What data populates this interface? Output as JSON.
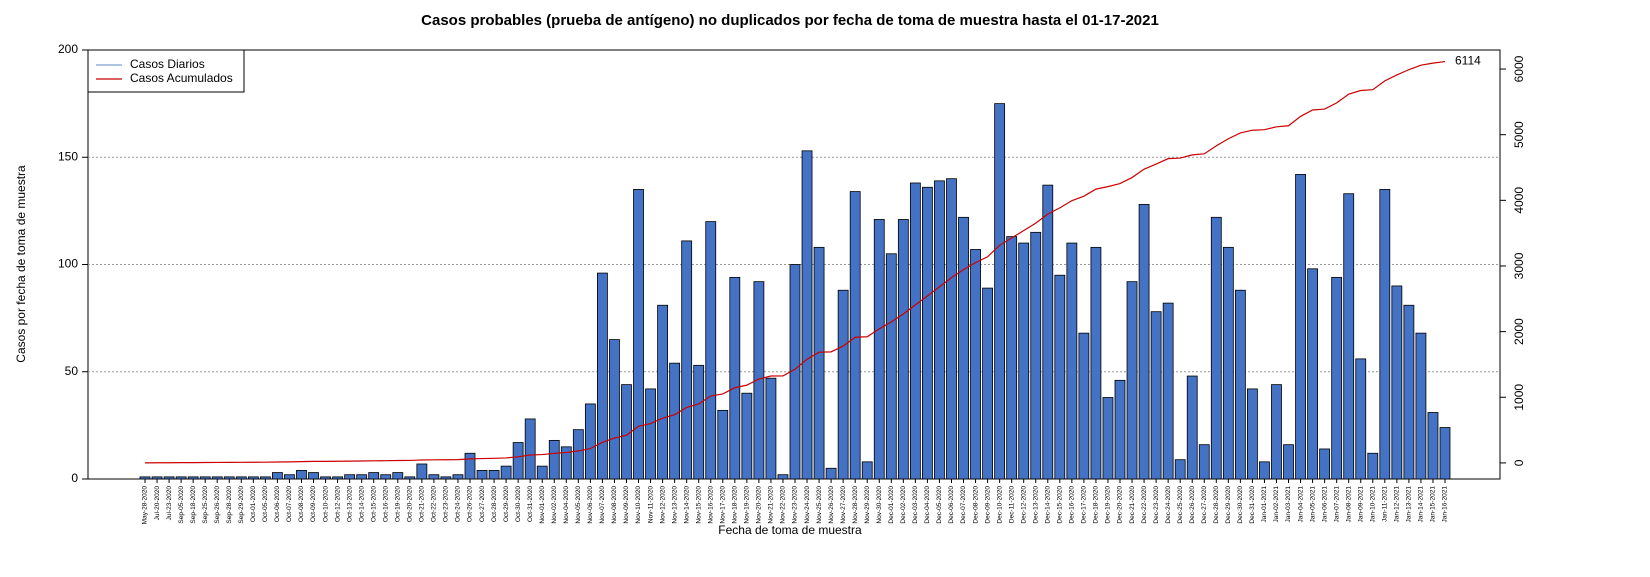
{
  "chart_data": {
    "type": "bar",
    "title": "Casos probables (prueba de antígeno) no duplicados por fecha de toma de muestra hasta el 01-17-2021",
    "xlabel": "Fecha de toma de muestra",
    "ylabel": "Casos por fecha de toma de muestra",
    "categories": [
      "May-28-2020",
      "Jul-20-2020",
      "Jul-23-2020",
      "Sep-05-2020",
      "Sep-18-2020",
      "Sep-25-2020",
      "Sep-26-2020",
      "Sep-28-2020",
      "Sep-29-2020",
      "Oct-01-2020",
      "Oct-05-2020",
      "Oct-06-2020",
      "Oct-07-2020",
      "Oct-08-2020",
      "Oct-09-2020",
      "Oct-10-2020",
      "Oct-12-2020",
      "Oct-13-2020",
      "Oct-14-2020",
      "Oct-15-2020",
      "Oct-16-2020",
      "Oct-19-2020",
      "Oct-20-2020",
      "Oct-21-2020",
      "Oct-22-2020",
      "Oct-23-2020",
      "Oct-24-2020",
      "Oct-26-2020",
      "Oct-27-2020",
      "Oct-28-2020",
      "Oct-29-2020",
      "Oct-30-2020",
      "Oct-31-2020",
      "Nov-01-2020",
      "Nov-02-2020",
      "Nov-04-2020",
      "Nov-05-2020",
      "Nov-06-2020",
      "Nov-07-2020",
      "Nov-08-2020",
      "Nov-09-2020",
      "Nov-10-2020",
      "Nov-11-2020",
      "Nov-12-2020",
      "Nov-13-2020",
      "Nov-14-2020",
      "Nov-15-2020",
      "Nov-16-2020",
      "Nov-17-2020",
      "Nov-18-2020",
      "Nov-19-2020",
      "Nov-20-2020",
      "Nov-21-2020",
      "Nov-22-2020",
      "Nov-23-2020",
      "Nov-24-2020",
      "Nov-25-2020",
      "Nov-26-2020",
      "Nov-27-2020",
      "Nov-28-2020",
      "Nov-29-2020",
      "Nov-30-2020",
      "Dec-01-2020",
      "Dec-02-2020",
      "Dec-03-2020",
      "Dec-04-2020",
      "Dec-05-2020",
      "Dec-06-2020",
      "Dec-07-2020",
      "Dec-08-2020",
      "Dec-09-2020",
      "Dec-10-2020",
      "Dec-11-2020",
      "Dec-12-2020",
      "Dec-13-2020",
      "Dec-14-2020",
      "Dec-15-2020",
      "Dec-16-2020",
      "Dec-17-2020",
      "Dec-18-2020",
      "Dec-19-2020",
      "Dec-20-2020",
      "Dec-21-2020",
      "Dec-22-2020",
      "Dec-23-2020",
      "Dec-24-2020",
      "Dec-25-2020",
      "Dec-26-2020",
      "Dec-27-2020",
      "Dec-28-2020",
      "Dec-29-2020",
      "Dec-30-2020",
      "Dec-31-2020",
      "Jan-01-2021",
      "Jan-02-2021",
      "Jan-03-2021",
      "Jan-04-2021",
      "Jan-05-2021",
      "Jan-06-2021",
      "Jan-07-2021",
      "Jan-08-2021",
      "Jan-09-2021",
      "Jan-10-2021",
      "Jan-11-2021",
      "Jan-12-2021",
      "Jan-13-2021",
      "Jan-14-2021",
      "Jan-15-2021",
      "Jan-16-2021"
    ],
    "series": [
      {
        "name": "Casos Diarios",
        "color": "#4472c4",
        "legend_color": "#7f9fd0",
        "values": [
          1,
          1,
          1,
          1,
          1,
          1,
          1,
          1,
          1,
          1,
          1,
          3,
          2,
          4,
          3,
          1,
          1,
          2,
          2,
          3,
          2,
          3,
          1,
          7,
          2,
          1,
          2,
          12,
          4,
          4,
          6,
          17,
          28,
          6,
          18,
          15,
          23,
          35,
          96,
          65,
          44,
          135,
          42,
          81,
          54,
          111,
          53,
          120,
          32,
          94,
          40,
          92,
          47,
          2,
          100,
          153,
          108,
          5,
          88,
          134,
          8,
          121,
          105,
          121,
          138,
          136,
          139,
          140,
          122,
          107,
          89,
          175,
          113,
          110,
          115,
          137,
          95,
          110,
          68,
          108,
          38,
          46,
          92,
          128,
          78,
          82,
          9,
          48,
          16,
          122,
          108,
          88,
          42,
          8,
          44,
          16,
          142,
          98,
          14,
          94,
          133,
          56,
          12,
          135,
          90,
          81,
          68,
          31,
          24
        ]
      },
      {
        "name": "Casos Acumulados",
        "color": "#cc0000",
        "axis": "y2",
        "values": [
          1,
          2,
          3,
          4,
          5,
          6,
          7,
          8,
          9,
          10,
          11,
          14,
          16,
          20,
          23,
          24,
          25,
          27,
          29,
          32,
          34,
          37,
          38,
          45,
          47,
          48,
          50,
          62,
          66,
          70,
          76,
          93,
          121,
          127,
          145,
          160,
          183,
          218,
          314,
          379,
          423,
          558,
          600,
          681,
          735,
          846,
          899,
          1019,
          1051,
          1145,
          1185,
          1277,
          1324,
          1326,
          1426,
          1579,
          1687,
          1692,
          1780,
          1914,
          1922,
          2043,
          2148,
          2269,
          2407,
          2543,
          2682,
          2822,
          2944,
          3051,
          3140,
          3315,
          3428,
          3538,
          3653,
          3790,
          3885,
          3995,
          4063,
          4171,
          4209,
          4255,
          4347,
          4475,
          4553,
          4635,
          4644,
          4692,
          4708,
          4830,
          4938,
          5026,
          5068,
          5076,
          5120,
          5136,
          5278,
          5376,
          5390,
          5484,
          5617,
          5673,
          5685,
          5820,
          5910,
          5991,
          6059,
          6090,
          6114
        ]
      }
    ],
    "ylim": [
      0,
      200
    ],
    "yticks": [
      0,
      50,
      100,
      150,
      200
    ],
    "y2lim": [
      -245,
      6290
    ],
    "y2ticks": [
      0,
      1000,
      2000,
      3000,
      4000,
      5000,
      6000
    ],
    "grid": true,
    "legend": "top-left"
  }
}
